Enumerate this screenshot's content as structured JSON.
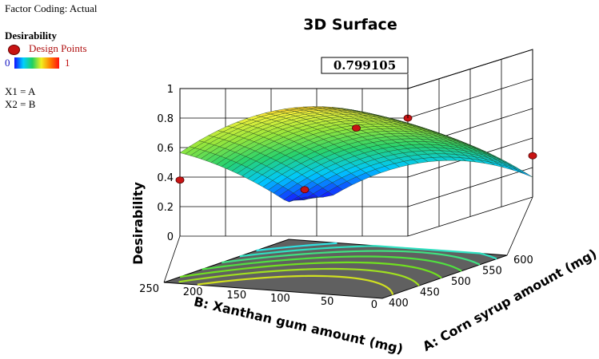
{
  "header": {
    "factor_coding": "Factor Coding: Actual",
    "response_name": "Desirability",
    "design_points_label": "Design Points",
    "colorbar_min": "0",
    "colorbar_max": "1",
    "factor_map_1": "X1 = A",
    "factor_map_2": "X2 = B"
  },
  "colors": {
    "design_point": "#c81414",
    "colorbar": [
      "#1010ff",
      "#00d0ff",
      "#20d060",
      "#f0f020",
      "#ff8000",
      "#ff1010"
    ]
  },
  "chart_data": {
    "type": "surface3d",
    "title": "3D Surface",
    "zlabel": "Desirability",
    "xlabel": "A: Corn syrup amount (mg)",
    "ylabel": "B: Xanthan gum amount (mg)",
    "x_ticks": [
      "400",
      "450",
      "500",
      "550",
      "600"
    ],
    "y_ticks": [
      "0",
      "50",
      "100",
      "150",
      "200",
      "250"
    ],
    "z_ticks": [
      "0",
      "0.2",
      "0.4",
      "0.6",
      "0.8",
      "1"
    ],
    "xlim": [
      400,
      600
    ],
    "ylim": [
      0,
      250
    ],
    "zlim": [
      0,
      1
    ],
    "flag_value": "0.799105",
    "design_points": [
      {
        "a": 400,
        "b": 250,
        "d": 0.38
      },
      {
        "a": 400,
        "b": 0,
        "d": 0.8
      },
      {
        "a": 500,
        "b": 125,
        "d": 0.6
      },
      {
        "a": 600,
        "b": 250,
        "d": 0.05
      },
      {
        "a": 600,
        "b": 0,
        "d": 0.28
      }
    ]
  }
}
